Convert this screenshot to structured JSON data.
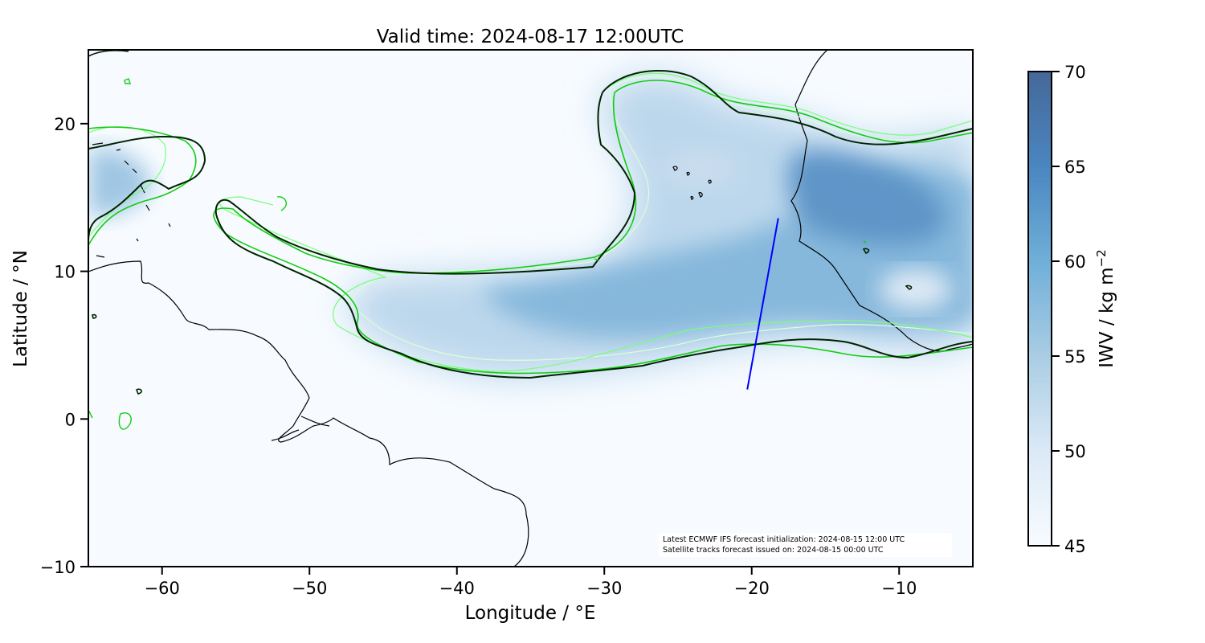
{
  "title": "Valid time: 2024-08-17 12:00UTC",
  "axes": {
    "xlabel": "Longitude / °E",
    "ylabel": "Latitude / °N",
    "xlim": [
      -65,
      -5
    ],
    "ylim": [
      -10,
      25
    ],
    "xticks": [
      -60,
      -50,
      -40,
      -30,
      -20,
      -10
    ],
    "yticks": [
      -10,
      0,
      10,
      20
    ],
    "xtick_labels": [
      "−60",
      "−50",
      "−40",
      "−30",
      "−20",
      "−10"
    ],
    "ytick_labels": [
      "−10",
      "0",
      "10",
      "20"
    ]
  },
  "colorbar": {
    "label": "IWV / kg m",
    "label_sup": "−2",
    "range": [
      45,
      70
    ],
    "ticks": [
      45,
      50,
      55,
      60,
      65,
      70
    ],
    "tick_labels": [
      "45",
      "50",
      "55",
      "60",
      "65",
      "70"
    ],
    "colors": [
      "#f7fbff",
      "#c6dbef",
      "#9ecae1",
      "#6baed6",
      "#4a87c0",
      "#446899"
    ]
  },
  "annotation": {
    "line1": "Latest ECMWF IFS forecast initialization: 2024-08-15 12:00 UTC",
    "line2": "Satellite tracks forecast issued on: 2024-08-15 00:00 UTC"
  },
  "satellite_track": {
    "color": "#0000ff",
    "points": [
      [
        -20.3,
        2.0
      ],
      [
        -18.2,
        13.6
      ]
    ]
  },
  "contour_colors": {
    "main": "#002200",
    "green": "#11cc11",
    "light_green": "#77ff77",
    "pale": "#d8ffd8"
  },
  "coastline_color": "#000000"
}
